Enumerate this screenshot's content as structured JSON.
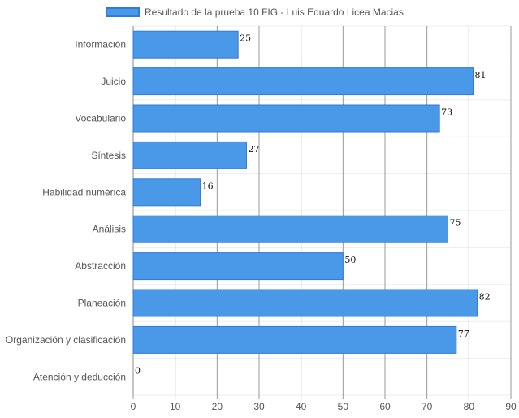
{
  "chart_data": {
    "type": "bar",
    "orientation": "horizontal",
    "categories": [
      "Información",
      "Juicio",
      "Vocabulario",
      "Síntesis",
      "Habilidad numérica",
      "Análisis",
      "Abstracción",
      "Planeación",
      "Organización y clasificación",
      "Atención y deducción"
    ],
    "series": [
      {
        "name": "Resultado de la prueba 10 FIG - Luis Eduardo Licea Macias",
        "values": [
          25,
          81,
          73,
          27,
          16,
          75,
          50,
          82,
          77,
          0
        ]
      }
    ],
    "xlim": [
      0,
      90
    ],
    "xticks": [
      0,
      10,
      20,
      30,
      40,
      50,
      60,
      70,
      80,
      90
    ],
    "grid": true,
    "legend_position": "top-center",
    "bar_color": "#4a98e8",
    "bar_border_color": "#2f7bd6",
    "data_labels": true
  }
}
